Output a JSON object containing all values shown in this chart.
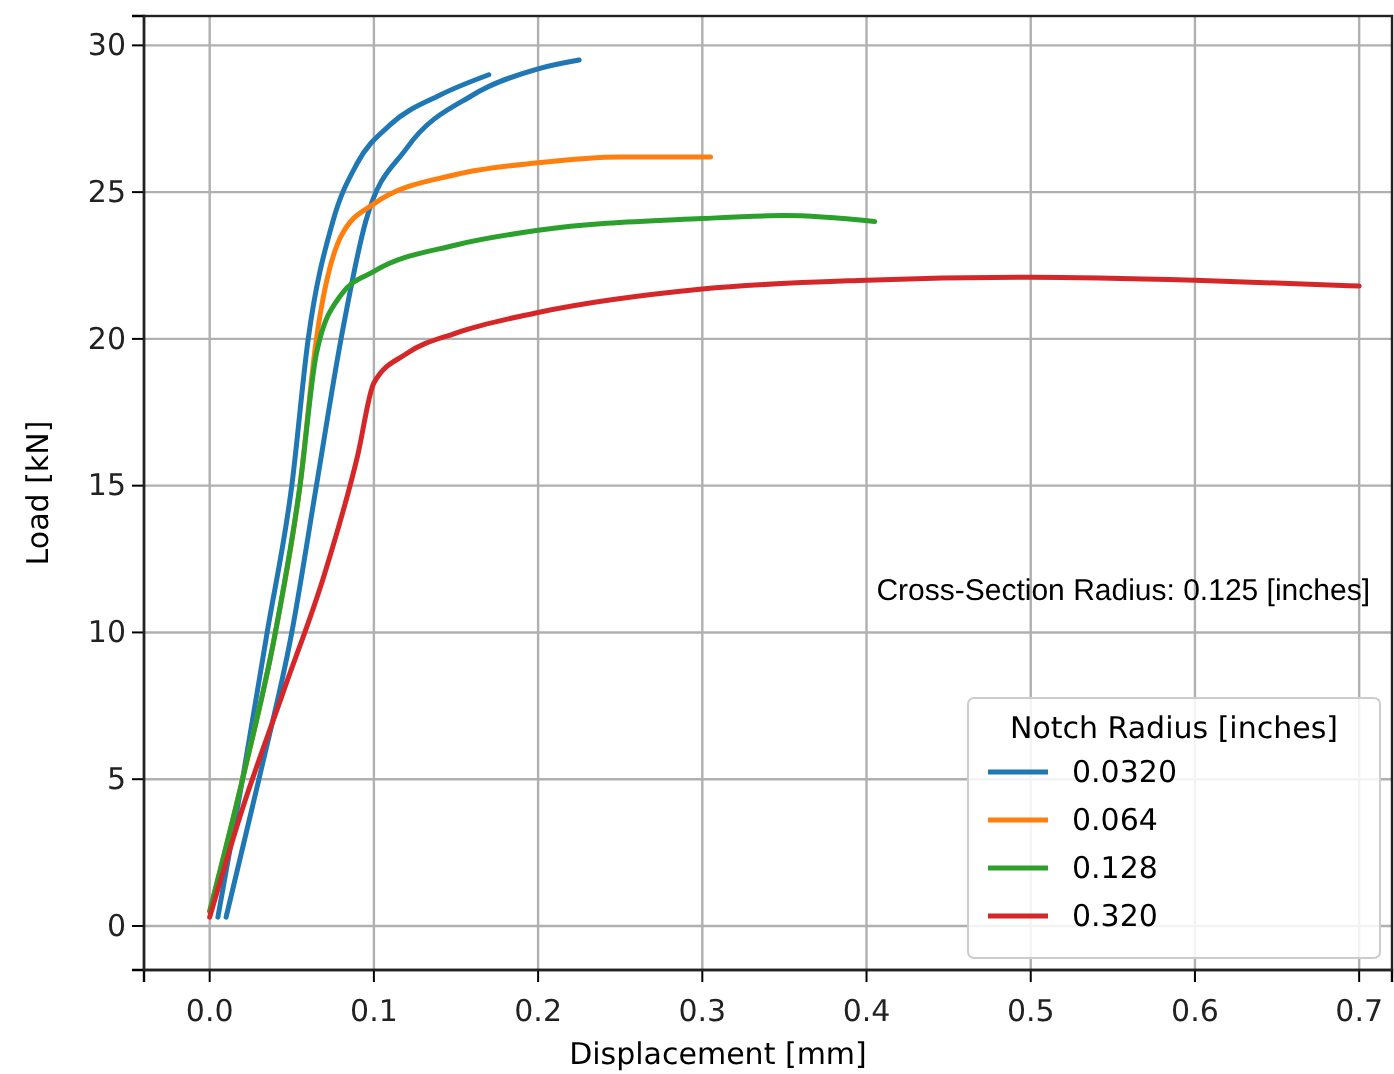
{
  "chart_data": {
    "type": "line",
    "xlabel": "Displacement [mm]",
    "ylabel": "Load [kN]",
    "legend_title": "Notch Radius [inches]",
    "legend": "bottom right",
    "grid": true,
    "line_style": "solid",
    "annotations": [
      "Cross-Section Radius: 0.125 [inches]"
    ],
    "xlim": [
      -0.04,
      0.72
    ],
    "xticks": [
      {
        "value": 0,
        "label": "0.0"
      },
      0.1,
      0.2,
      0.3,
      0.4,
      0.5,
      0.6,
      0.7
    ],
    "ylim": [
      -1.5,
      31
    ],
    "yticks": [
      0,
      5,
      10,
      15,
      20,
      25,
      30
    ],
    "series": [
      {
        "name": "0.0320",
        "color": "#1f77b4",
        "x": [
          0.005,
          0.02,
          0.035,
          0.05,
          0.06,
          0.075,
          0.09,
          0.11,
          0.14,
          0.17
        ],
        "values": [
          0.3,
          5,
          10,
          15,
          20,
          24,
          26,
          27.3,
          28.3,
          29
        ]
      },
      {
        "color": "#1f77b4",
        "x": [
          0.01,
          0.03,
          0.05,
          0.065,
          0.08,
          0.095,
          0.12,
          0.16,
          0.2,
          0.225
        ],
        "values": [
          0.3,
          5,
          10,
          15,
          20,
          24,
          26.5,
          28.3,
          29.2,
          29.5
        ]
      },
      {
        "name": "0.064",
        "color": "#ff7f0e",
        "x": [
          0,
          0.02,
          0.04,
          0.055,
          0.065,
          0.08,
          0.1,
          0.15,
          0.2,
          0.25,
          0.305
        ],
        "values": [
          0.5,
          5,
          10,
          15,
          20,
          23.5,
          24.6,
          25.6,
          26,
          26.2,
          26.2
        ]
      },
      {
        "name": "0.128",
        "color": "#2ca02c",
        "x": [
          0,
          0.02,
          0.04,
          0.055,
          0.065,
          0.08,
          0.1,
          0.15,
          0.2,
          0.3,
          0.35,
          0.405
        ],
        "values": [
          0.5,
          5,
          10,
          15,
          19.5,
          21.5,
          22.3,
          23.2,
          23.7,
          24.1,
          24.2,
          24
        ]
      },
      {
        "name": "0.320",
        "color": "#d62728",
        "x": [
          0,
          0.02,
          0.045,
          0.07,
          0.09,
          0.1,
          0.12,
          0.15,
          0.2,
          0.3,
          0.4,
          0.5,
          0.6,
          0.7
        ],
        "values": [
          0.3,
          4,
          8,
          12,
          16,
          18.5,
          19.5,
          20.2,
          20.9,
          21.7,
          22,
          22.1,
          22,
          21.8
        ]
      }
    ]
  }
}
